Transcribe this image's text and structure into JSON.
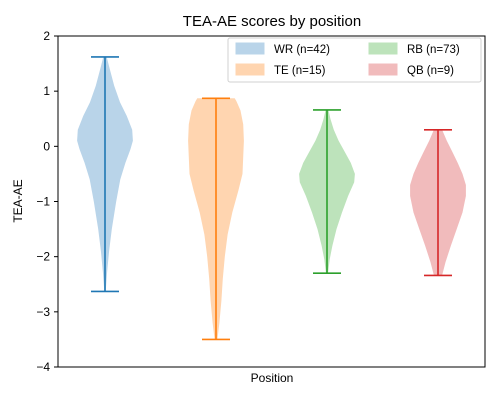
{
  "chart_data": {
    "type": "violin",
    "title": "TEA-AE scores by position",
    "xlabel": "Position",
    "ylabel": "TEA-AE",
    "ylim": [
      -4,
      2
    ],
    "yticks": [
      -4,
      -3,
      -2,
      -1,
      0,
      1,
      2
    ],
    "grid": false,
    "legend_placement": "top-right",
    "series": [
      {
        "name": "WR (n=42)",
        "color": "#1f77b4",
        "fill": "#b9d4e9",
        "min": -2.63,
        "max": 1.62,
        "density": [
          [
            -2.63,
            0.02
          ],
          [
            -2.3,
            0.06
          ],
          [
            -1.9,
            0.12
          ],
          [
            -1.5,
            0.2
          ],
          [
            -1.0,
            0.33
          ],
          [
            -0.6,
            0.45
          ],
          [
            -0.3,
            0.6
          ],
          [
            -0.05,
            0.75
          ],
          [
            0.1,
            0.82
          ],
          [
            0.3,
            0.8
          ],
          [
            0.55,
            0.64
          ],
          [
            0.8,
            0.44
          ],
          [
            1.1,
            0.27
          ],
          [
            1.4,
            0.14
          ],
          [
            1.62,
            0.05
          ]
        ]
      },
      {
        "name": "TE (n=15)",
        "color": "#ff7f0e",
        "fill": "#ffd5b0",
        "min": -3.5,
        "max": 0.87,
        "density": [
          [
            -3.5,
            0.04
          ],
          [
            -3.2,
            0.1
          ],
          [
            -2.8,
            0.16
          ],
          [
            -2.4,
            0.2
          ],
          [
            -2.0,
            0.26
          ],
          [
            -1.6,
            0.34
          ],
          [
            -1.2,
            0.48
          ],
          [
            -0.8,
            0.66
          ],
          [
            -0.5,
            0.78
          ],
          [
            -0.2,
            0.8
          ],
          [
            0.1,
            0.82
          ],
          [
            0.4,
            0.8
          ],
          [
            0.65,
            0.72
          ],
          [
            0.82,
            0.6
          ],
          [
            0.87,
            0.55
          ]
        ]
      },
      {
        "name": "RB (n=73)",
        "color": "#2ca02c",
        "fill": "#bde3bb",
        "min": -2.3,
        "max": 0.66,
        "density": [
          [
            -2.3,
            0.03
          ],
          [
            -2.05,
            0.08
          ],
          [
            -1.8,
            0.16
          ],
          [
            -1.5,
            0.28
          ],
          [
            -1.2,
            0.44
          ],
          [
            -0.9,
            0.62
          ],
          [
            -0.65,
            0.8
          ],
          [
            -0.5,
            0.82
          ],
          [
            -0.3,
            0.7
          ],
          [
            -0.1,
            0.52
          ],
          [
            0.1,
            0.34
          ],
          [
            0.3,
            0.2
          ],
          [
            0.5,
            0.1
          ],
          [
            0.66,
            0.04
          ]
        ]
      },
      {
        "name": "QB (n=9)",
        "color": "#d62728",
        "fill": "#f1bbbc",
        "min": -2.34,
        "max": 0.3,
        "density": [
          [
            -2.34,
            0.12
          ],
          [
            -2.1,
            0.22
          ],
          [
            -1.8,
            0.38
          ],
          [
            -1.5,
            0.55
          ],
          [
            -1.2,
            0.72
          ],
          [
            -0.9,
            0.82
          ],
          [
            -0.7,
            0.82
          ],
          [
            -0.5,
            0.72
          ],
          [
            -0.3,
            0.58
          ],
          [
            -0.1,
            0.42
          ],
          [
            0.1,
            0.26
          ],
          [
            0.3,
            0.12
          ]
        ]
      }
    ]
  }
}
